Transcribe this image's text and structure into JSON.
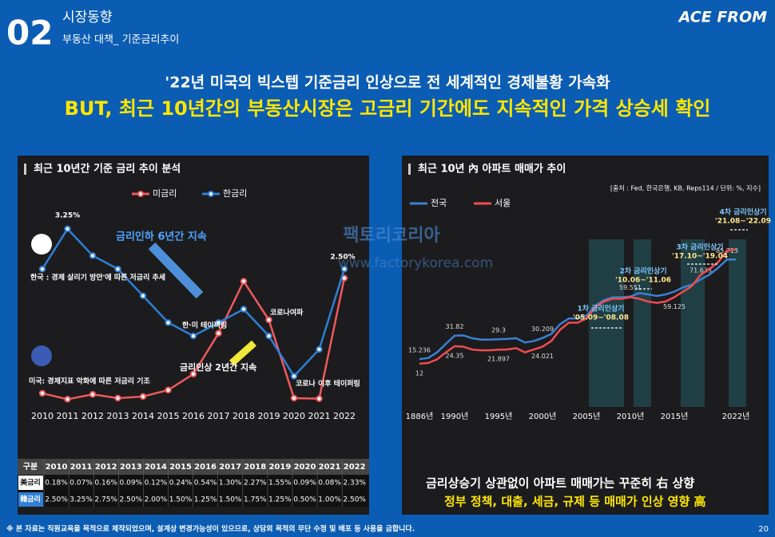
{
  "header": {
    "number": "02",
    "section": "시장동향",
    "subtitle": "부동산 대책_ 기준금리추이",
    "logo": "ACE FROM"
  },
  "headline": [
    "'22년 미국의 빅스텝 기준금리 인상으로 전 세계적인 경제불황 가속화",
    "BUT, 최근 10년간의 부동산시장은 고금리 기간에도 지속적인 가격 상승세 확인"
  ],
  "watermark": [
    "팩토리코리아",
    "www.factorykorea.com"
  ],
  "chart_data": [
    {
      "type": "line",
      "title": "최근 10년간 기준 금리 추이 분석",
      "categories": [
        "2010",
        "2011",
        "2012",
        "2013",
        "2014",
        "2015",
        "2016",
        "2017",
        "2018",
        "2019",
        "2020",
        "2021",
        "2022"
      ],
      "series": [
        {
          "name": "미금리",
          "color": "#f0595c",
          "values": [
            0.18,
            0.07,
            0.16,
            0.09,
            0.12,
            0.24,
            0.54,
            1.3,
            2.27,
            1.55,
            0.09,
            0.08,
            2.33
          ],
          "value_labels": [
            "0.18%",
            "0.07%",
            "0.16%",
            "0.09%",
            "0.12%",
            "0.24%",
            "0.54%",
            "1.30%",
            "2.27%",
            "1.55%",
            "0.09%",
            "0.08%",
            "2.33%"
          ]
        },
        {
          "name": "한금리",
          "color": "#2f7fd6",
          "values": [
            2.5,
            3.25,
            2.75,
            2.5,
            2.0,
            1.5,
            1.25,
            1.5,
            1.75,
            1.25,
            0.5,
            1.0,
            2.5
          ],
          "value_labels": [
            "2.50%",
            "3.25%",
            "2.75%",
            "2.50%",
            "2.00%",
            "1.50%",
            "1.25%",
            "1.50%",
            "1.75%",
            "1.25%",
            "0.50%",
            "1.00%",
            "2.50%"
          ]
        }
      ],
      "ylim": [
        0,
        3.5
      ],
      "point_labels": [
        "3.25%",
        "2.50%"
      ],
      "annotations": [
        "금리인하 6년간 지속",
        "한국 : 경제 살리기 방안'에 따른 저금리 추세",
        "한·미 테이퍼링",
        "코로나여파",
        "금리인상 2년간 지속",
        "미국: 경제지표 악화에 따른 저금리 기조",
        "코로나 이후 테이퍼링"
      ],
      "table": {
        "header": "구분",
        "row_labels": [
          "美금리",
          "韓금리"
        ]
      }
    },
    {
      "type": "line",
      "title": "최근 10년 內 아파트 매매가 추이",
      "source": "[출처 : Fed, 한국은행, KB, Reps114 / 단위: %, 지수]",
      "categories": [
        "1886년",
        null,
        null,
        null,
        "1990년",
        null,
        null,
        null,
        null,
        "1995년",
        null,
        null,
        null,
        null,
        "2000년",
        null,
        null,
        null,
        null,
        "2005년",
        null,
        null,
        null,
        null,
        "2010년",
        null,
        null,
        null,
        null,
        "2015년",
        null,
        null,
        null,
        null,
        null,
        null,
        "2022년"
      ],
      "series": [
        {
          "name": "전국",
          "color": "#3b80d2",
          "values": [
            15.236,
            16,
            20,
            26,
            31.82,
            32,
            30,
            29,
            29,
            29.3,
            29.5,
            30,
            27,
            28,
            30.209,
            33,
            40,
            44,
            44,
            46,
            53,
            57,
            59,
            59,
            59.551,
            62,
            61,
            60,
            61,
            63,
            66,
            68,
            71.633,
            75,
            80,
            85.713,
            85.713
          ],
          "value_labels": [
            "15.236",
            null,
            null,
            null,
            "31.82",
            null,
            null,
            null,
            null,
            "29.3",
            null,
            null,
            null,
            null,
            "30.209",
            null,
            null,
            null,
            null,
            null,
            null,
            null,
            null,
            null,
            "59.551",
            null,
            null,
            null,
            null,
            null,
            null,
            null,
            "71.633",
            null,
            null,
            "85.713",
            null
          ]
        },
        {
          "name": "서울",
          "color": "#f04b50",
          "values": [
            12,
            12.5,
            15,
            20,
            24.35,
            24,
            22,
            21.5,
            21.5,
            21.897,
            22,
            23,
            20,
            22,
            24.021,
            28,
            36,
            41,
            41,
            44,
            52,
            56,
            58,
            58,
            59,
            58,
            56,
            55,
            56,
            59.125,
            63,
            67,
            75,
            79,
            84,
            92,
            93
          ],
          "value_labels": [
            "12",
            null,
            null,
            null,
            "24.35",
            null,
            null,
            null,
            null,
            "21.897",
            null,
            null,
            null,
            null,
            "24.021",
            null,
            null,
            null,
            null,
            null,
            null,
            null,
            null,
            null,
            null,
            null,
            null,
            null,
            null,
            "59.125",
            null,
            null,
            null,
            null,
            null,
            null,
            null
          ]
        }
      ],
      "ylim": [
        0,
        100
      ],
      "annotations": [
        [
          "1차 금리인상기",
          "'05.09~'08.08"
        ],
        [
          "2차 금리인상기",
          "'10.06~'11.06"
        ],
        [
          "3차 금리인상기",
          "'17.10~'19.04"
        ],
        [
          "4차 금리인상기",
          "'21.08~'22.09"
        ]
      ],
      "captions": [
        "금리상승기 상관없이 아파트 매매가는 꾸준히 右 상향",
        "정부 정책, 대출, 세금, 규제 등 매매가 인상 영향 高"
      ]
    }
  ],
  "footer": {
    "note": "※ 본 자료는 직원교육을 목적으로 제작되었으며, 설계상 변경가능성이 있으므로, 상담외 목적의 무단 수정 및 배포 등 사용을 금합니다.",
    "page": "20"
  }
}
